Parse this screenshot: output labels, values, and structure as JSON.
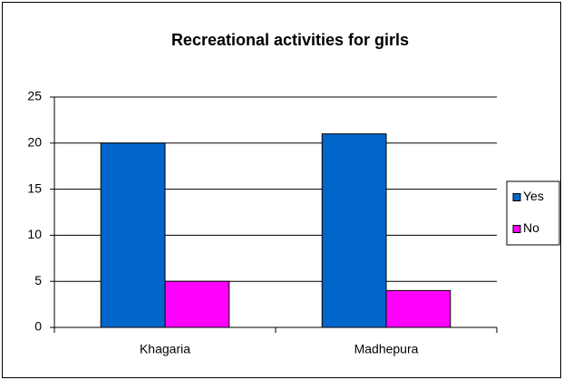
{
  "chart_data": {
    "type": "bar",
    "title": "Recreational activities for girls",
    "categories": [
      "Khagaria",
      "Madhepura"
    ],
    "series": [
      {
        "name": "Yes",
        "color": "#0066cc",
        "values": [
          20,
          21
        ]
      },
      {
        "name": "No",
        "color": "#ff00ff",
        "values": [
          5,
          4
        ]
      }
    ],
    "ylim": [
      0,
      25
    ],
    "yticks": [
      0,
      5,
      10,
      15,
      20,
      25
    ],
    "grid": true,
    "legend": "right"
  }
}
